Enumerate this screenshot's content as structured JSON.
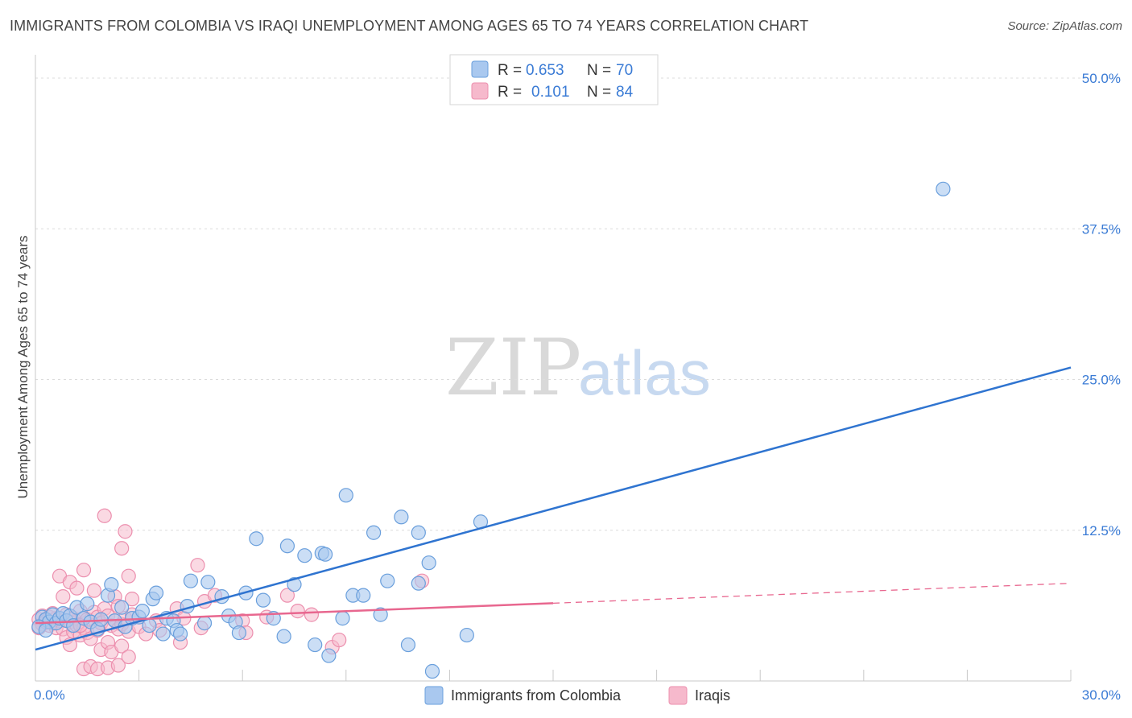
{
  "header": {
    "title": "IMMIGRANTS FROM COLOMBIA VS IRAQI UNEMPLOYMENT AMONG AGES 65 TO 74 YEARS CORRELATION CHART",
    "source": "Source: ZipAtlas.com"
  },
  "watermark": {
    "zip": "ZIP",
    "atlas": "atlas"
  },
  "legend": {
    "r_label": "R =",
    "n_label": "N =",
    "series1": {
      "r": "0.653",
      "n": "70"
    },
    "series2": {
      "r": "0.101",
      "n": "84"
    }
  },
  "colors": {
    "blue_fill": "#a9c8ef",
    "blue_stroke": "#6a9fdc",
    "blue_line": "#2f74d0",
    "pink_fill": "#f6b9cc",
    "pink_stroke": "#ec8fae",
    "pink_line": "#e8678f",
    "grid": "#dcdcdc",
    "tick": "#3a7bd5"
  },
  "chart_data": {
    "type": "scatter",
    "title": "IMMIGRANTS FROM COLOMBIA VS IRAQI UNEMPLOYMENT AMONG AGES 65 TO 74 YEARS CORRELATION CHART",
    "xlabel": "",
    "ylabel": "Unemployment Among Ages 65 to 74 years",
    "xlim": [
      0,
      30
    ],
    "ylim": [
      0,
      52
    ],
    "x_tick_labels": [
      "0.0%",
      "30.0%"
    ],
    "y_ticks": [
      12.5,
      25.0,
      37.5,
      50.0
    ],
    "y_tick_labels": [
      "12.5%",
      "25.0%",
      "37.5%",
      "50.0%"
    ],
    "grid": true,
    "legend_position": "top-center",
    "series": [
      {
        "name": "Immigrants from Colombia",
        "color": "#a9c8ef",
        "trendline": {
          "x": [
            0,
            30
          ],
          "y": [
            2.6,
            26.0
          ],
          "dashed_from": null
        },
        "points": [
          [
            0.2,
            5.3
          ],
          [
            0.3,
            5.1
          ],
          [
            0.4,
            4.9
          ],
          [
            0.5,
            5.5
          ],
          [
            0.6,
            4.8
          ],
          [
            0.7,
            5.2
          ],
          [
            0.8,
            5.6
          ],
          [
            0.9,
            5.0
          ],
          [
            1.0,
            5.4
          ],
          [
            1.1,
            4.6
          ],
          [
            1.2,
            6.1
          ],
          [
            1.4,
            5.2
          ],
          [
            1.5,
            6.4
          ],
          [
            1.6,
            4.9
          ],
          [
            1.8,
            4.3
          ],
          [
            1.9,
            5.1
          ],
          [
            2.1,
            7.1
          ],
          [
            2.2,
            8.0
          ],
          [
            2.3,
            5.0
          ],
          [
            2.5,
            6.1
          ],
          [
            2.6,
            4.5
          ],
          [
            2.8,
            5.2
          ],
          [
            3.0,
            5.3
          ],
          [
            3.1,
            5.8
          ],
          [
            3.3,
            4.6
          ],
          [
            3.4,
            6.8
          ],
          [
            3.5,
            7.3
          ],
          [
            3.7,
            3.9
          ],
          [
            3.8,
            5.2
          ],
          [
            4.0,
            5.0
          ],
          [
            4.1,
            4.2
          ],
          [
            4.2,
            3.9
          ],
          [
            4.4,
            6.2
          ],
          [
            4.5,
            8.3
          ],
          [
            4.9,
            4.8
          ],
          [
            5.0,
            8.2
          ],
          [
            5.4,
            7.0
          ],
          [
            5.6,
            5.4
          ],
          [
            5.8,
            4.9
          ],
          [
            5.9,
            4.0
          ],
          [
            6.1,
            7.3
          ],
          [
            6.4,
            11.8
          ],
          [
            6.6,
            6.7
          ],
          [
            6.9,
            5.2
          ],
          [
            7.2,
            3.7
          ],
          [
            7.3,
            11.2
          ],
          [
            7.5,
            8.0
          ],
          [
            7.8,
            10.4
          ],
          [
            8.1,
            3.0
          ],
          [
            8.3,
            10.6
          ],
          [
            8.4,
            10.5
          ],
          [
            8.5,
            2.1
          ],
          [
            8.9,
            5.2
          ],
          [
            9.0,
            15.4
          ],
          [
            9.2,
            7.1
          ],
          [
            9.5,
            7.1
          ],
          [
            9.8,
            12.3
          ],
          [
            10.0,
            5.5
          ],
          [
            10.2,
            8.3
          ],
          [
            10.6,
            13.6
          ],
          [
            10.8,
            3.0
          ],
          [
            11.1,
            8.1
          ],
          [
            11.1,
            12.3
          ],
          [
            11.4,
            9.8
          ],
          [
            11.5,
            0.8
          ],
          [
            12.5,
            3.8
          ],
          [
            12.9,
            13.2
          ],
          [
            26.3,
            40.8
          ],
          [
            0.1,
            4.5
          ],
          [
            0.3,
            4.2
          ]
        ]
      },
      {
        "name": "Iraqis",
        "color": "#f6b9cc",
        "trendline": {
          "x": [
            0,
            30
          ],
          "y": [
            4.8,
            8.1
          ],
          "solid_until_x": 15
        },
        "points": [
          [
            0.1,
            5.1
          ],
          [
            0.2,
            4.7
          ],
          [
            0.2,
            5.4
          ],
          [
            0.3,
            5.0
          ],
          [
            0.4,
            4.6
          ],
          [
            0.4,
            5.3
          ],
          [
            0.5,
            4.8
          ],
          [
            0.6,
            5.2
          ],
          [
            0.6,
            4.4
          ],
          [
            0.7,
            8.7
          ],
          [
            0.7,
            5.0
          ],
          [
            0.8,
            7.0
          ],
          [
            0.8,
            4.3
          ],
          [
            0.9,
            5.5
          ],
          [
            0.9,
            3.6
          ],
          [
            1.0,
            8.2
          ],
          [
            1.0,
            4.9
          ],
          [
            1.0,
            3.0
          ],
          [
            1.1,
            5.2
          ],
          [
            1.1,
            4.1
          ],
          [
            1.2,
            7.7
          ],
          [
            1.2,
            4.6
          ],
          [
            1.3,
            5.8
          ],
          [
            1.3,
            3.8
          ],
          [
            1.4,
            9.2
          ],
          [
            1.4,
            4.4
          ],
          [
            1.4,
            1.0
          ],
          [
            1.5,
            5.1
          ],
          [
            1.5,
            4.0
          ],
          [
            1.6,
            3.5
          ],
          [
            1.6,
            1.2
          ],
          [
            1.7,
            7.5
          ],
          [
            1.7,
            5.7
          ],
          [
            1.8,
            5.3
          ],
          [
            1.8,
            4.2
          ],
          [
            1.8,
            1.0
          ],
          [
            1.9,
            2.6
          ],
          [
            1.9,
            4.8
          ],
          [
            2.0,
            13.7
          ],
          [
            2.0,
            6.0
          ],
          [
            2.1,
            5.4
          ],
          [
            2.1,
            3.2
          ],
          [
            2.1,
            1.1
          ],
          [
            2.2,
            4.6
          ],
          [
            2.2,
            2.4
          ],
          [
            2.3,
            7.0
          ],
          [
            2.3,
            5.0
          ],
          [
            2.4,
            6.2
          ],
          [
            2.4,
            4.3
          ],
          [
            2.4,
            1.3
          ],
          [
            2.5,
            11.0
          ],
          [
            2.5,
            4.7
          ],
          [
            2.5,
            2.9
          ],
          [
            2.6,
            12.4
          ],
          [
            2.6,
            5.2
          ],
          [
            2.7,
            8.7
          ],
          [
            2.7,
            4.1
          ],
          [
            2.7,
            2.0
          ],
          [
            2.8,
            6.8
          ],
          [
            2.8,
            5.5
          ],
          [
            3.0,
            4.5
          ],
          [
            3.2,
            3.9
          ],
          [
            3.5,
            5.0
          ],
          [
            3.6,
            4.2
          ],
          [
            4.1,
            6.0
          ],
          [
            4.2,
            3.2
          ],
          [
            4.3,
            5.2
          ],
          [
            4.7,
            9.6
          ],
          [
            4.9,
            6.6
          ],
          [
            4.8,
            4.4
          ],
          [
            5.2,
            7.1
          ],
          [
            6.0,
            5.0
          ],
          [
            6.1,
            4.0
          ],
          [
            6.7,
            5.3
          ],
          [
            7.3,
            7.1
          ],
          [
            7.6,
            5.8
          ],
          [
            8.0,
            5.5
          ],
          [
            8.6,
            2.8
          ],
          [
            8.8,
            3.4
          ],
          [
            11.2,
            8.3
          ],
          [
            0.1,
            4.4
          ],
          [
            0.3,
            4.9
          ],
          [
            0.5,
            5.6
          ],
          [
            1.3,
            4.6
          ]
        ]
      }
    ]
  },
  "bottom_legend": {
    "items": [
      "Immigrants from Colombia",
      "Iraqis"
    ]
  }
}
